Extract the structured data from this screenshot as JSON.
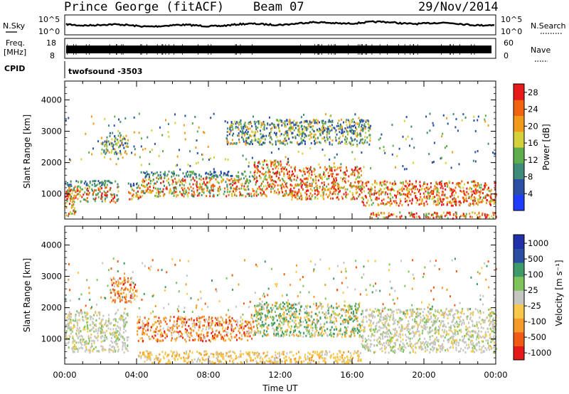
{
  "header": {
    "station": "Prince George (fitACF)",
    "beam": "Beam 07",
    "date": "29/Nov/2014"
  },
  "top_panels": {
    "nsky_label": "N.Sky",
    "nsky_top": "10^5",
    "nsky_bottom": "10^0",
    "nsearch_label": "N.Search",
    "nsearch_top": "10^5",
    "nsearch_bottom": "10^0",
    "freq_label": "Freq.",
    "freq_unit": "[MHz]",
    "freq_top": "18",
    "freq_bottom": "8",
    "nave_label": "Nave",
    "nave_top": "60",
    "nave_bottom": "0",
    "cpid_label": "CPID",
    "cpid_value": "twofsound  -3503"
  },
  "colors": {
    "power": [
      "#1f3cff",
      "#2c4fa6",
      "#3f8a78",
      "#5fae4d",
      "#d5d13a",
      "#f29a1a",
      "#f06410",
      "#e61a1a"
    ],
    "velocity": [
      "#e41a1a",
      "#f05a14",
      "#f59a28",
      "#f8c84a",
      "#c6c6c0",
      "#7fc45a",
      "#3e9a68",
      "#2a4fa0",
      "#2030a8"
    ],
    "trace": "#000000"
  },
  "chart_data": [
    {
      "type": "heatmap",
      "panel": "power",
      "ylabel": "Slant Range [km]",
      "xlabel": "",
      "x_ticks": [
        "00:00",
        "04:00",
        "08:00",
        "12:00",
        "16:00",
        "20:00",
        "00:00"
      ],
      "xlim_hours": [
        0,
        24
      ],
      "ylim": [
        200,
        4600
      ],
      "y_ticks": [
        1000,
        2000,
        3000,
        4000
      ],
      "colorbar": {
        "label": "Power [dB]",
        "ticks": [
          4,
          8,
          12,
          16,
          20,
          24,
          28
        ],
        "range": [
          0,
          30
        ]
      },
      "bands": [
        {
          "start": 0.0,
          "end": 0.6,
          "lo": 280,
          "hi": 1150,
          "level": "high"
        },
        {
          "start": 0.0,
          "end": 3.0,
          "lo": 760,
          "hi": 1450,
          "level": "mid"
        },
        {
          "start": 2.0,
          "end": 3.5,
          "lo": 2300,
          "hi": 2900,
          "level": "low"
        },
        {
          "start": 3.5,
          "end": 4.2,
          "lo": 850,
          "hi": 1400,
          "level": "mid"
        },
        {
          "start": 4.2,
          "end": 10.5,
          "lo": 950,
          "hi": 1750,
          "level": "mid"
        },
        {
          "start": 10.5,
          "end": 12.5,
          "lo": 950,
          "hi": 2100,
          "level": "high"
        },
        {
          "start": 12.5,
          "end": 16.5,
          "lo": 850,
          "hi": 1900,
          "level": "high"
        },
        {
          "start": 16.5,
          "end": 24.0,
          "lo": 650,
          "hi": 1450,
          "level": "high"
        },
        {
          "start": 17.0,
          "end": 24.0,
          "lo": 250,
          "hi": 450,
          "level": "high"
        },
        {
          "start": 9.0,
          "end": 17.0,
          "lo": 2600,
          "hi": 3400,
          "level": "low"
        }
      ]
    },
    {
      "type": "heatmap",
      "panel": "velocity",
      "ylabel": "Slant Range [km]",
      "xlabel": "Time UT",
      "x_ticks": [
        "00:00",
        "04:00",
        "08:00",
        "12:00",
        "16:00",
        "20:00",
        "00:00"
      ],
      "xlim_hours": [
        0,
        24
      ],
      "ylim": [
        200,
        4600
      ],
      "y_ticks": [
        1000,
        2000,
        3000,
        4000
      ],
      "colorbar": {
        "label": "Velocity [m s⁻¹]",
        "ticks": [
          "1000",
          "500",
          "100",
          "25",
          "-25",
          "-100",
          "-500",
          "-1000"
        ]
      },
      "bands": [
        {
          "start": 0.0,
          "end": 3.5,
          "lo": 600,
          "hi": 1900,
          "kind": "ground"
        },
        {
          "start": 2.5,
          "end": 4.0,
          "lo": 2200,
          "hi": 3000,
          "kind": "away"
        },
        {
          "start": 4.0,
          "end": 10.5,
          "lo": 950,
          "hi": 1750,
          "kind": "away"
        },
        {
          "start": 10.5,
          "end": 16.5,
          "lo": 1100,
          "hi": 2200,
          "kind": "toward"
        },
        {
          "start": 16.5,
          "end": 24.0,
          "lo": 600,
          "hi": 2000,
          "kind": "ground"
        },
        {
          "start": 4.0,
          "end": 16.5,
          "lo": 250,
          "hi": 650,
          "kind": "away_weak"
        }
      ]
    }
  ]
}
